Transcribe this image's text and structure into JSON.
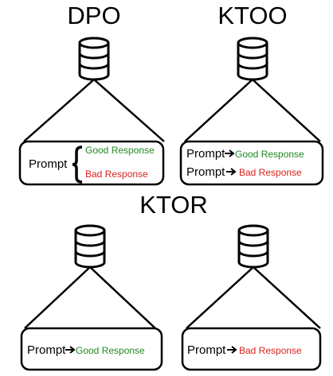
{
  "colors": {
    "stroke": "#000000",
    "good": "#1e8a1e",
    "bad": "#d9221b",
    "background": "#ffffff"
  },
  "titles": {
    "dpo": "DPO",
    "ktoo": "KTOO",
    "ktor": "KTOR"
  },
  "panels": {
    "dpo": {
      "prompt": "Prompt",
      "good": "Good Response",
      "bad": "Bad Response"
    },
    "ktoo": {
      "row1_prompt": "Prompt",
      "row1_response": "Good Response",
      "row2_prompt": "Prompt",
      "row2_response": "Bad Response"
    },
    "ktor_left": {
      "prompt": "Prompt",
      "response": "Good Response"
    },
    "ktor_right": {
      "prompt": "Prompt",
      "response": "Bad Response"
    }
  },
  "icons": {
    "database": "database-icon",
    "arrow": "right-arrow-icon",
    "brace": "left-curly-brace-icon"
  }
}
